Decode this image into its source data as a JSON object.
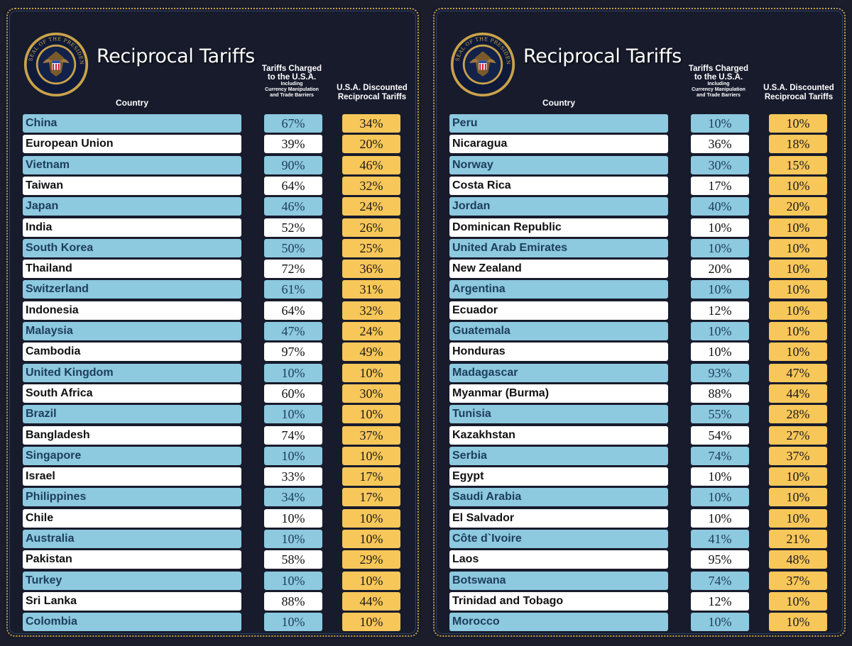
{
  "colors": {
    "background": "#171b2c",
    "row_blue": "#8dc9df",
    "row_white": "#ffffff",
    "discount_cell": "#f8c75a",
    "border_gold": "#c9a24a"
  },
  "panels": [
    {
      "title": "Reciprocal Tariffs",
      "seal_text": "SEAL OF THE PRESIDENT OF THE UNITED STATES",
      "headers": {
        "country": "Country",
        "charged_line1": "Tariffs Charged",
        "charged_line2": "to the U.S.A.",
        "charged_sub1": "Including",
        "charged_sub2": "Currency Manipulation",
        "charged_sub3": "and Trade Barriers",
        "discounted_line1": "U.S.A. Discounted",
        "discounted_line2": "Reciprocal Tariffs"
      },
      "rows": [
        {
          "country": "China",
          "charged": "67%",
          "discounted": "34%"
        },
        {
          "country": "European Union",
          "charged": "39%",
          "discounted": "20%"
        },
        {
          "country": "Vietnam",
          "charged": "90%",
          "discounted": "46%"
        },
        {
          "country": "Taiwan",
          "charged": "64%",
          "discounted": "32%"
        },
        {
          "country": "Japan",
          "charged": "46%",
          "discounted": "24%"
        },
        {
          "country": "India",
          "charged": "52%",
          "discounted": "26%"
        },
        {
          "country": "South Korea",
          "charged": "50%",
          "discounted": "25%"
        },
        {
          "country": "Thailand",
          "charged": "72%",
          "discounted": "36%"
        },
        {
          "country": "Switzerland",
          "charged": "61%",
          "discounted": "31%"
        },
        {
          "country": "Indonesia",
          "charged": "64%",
          "discounted": "32%"
        },
        {
          "country": "Malaysia",
          "charged": "47%",
          "discounted": "24%"
        },
        {
          "country": "Cambodia",
          "charged": "97%",
          "discounted": "49%"
        },
        {
          "country": "United Kingdom",
          "charged": "10%",
          "discounted": "10%"
        },
        {
          "country": "South Africa",
          "charged": "60%",
          "discounted": "30%"
        },
        {
          "country": "Brazil",
          "charged": "10%",
          "discounted": "10%"
        },
        {
          "country": "Bangladesh",
          "charged": "74%",
          "discounted": "37%"
        },
        {
          "country": "Singapore",
          "charged": "10%",
          "discounted": "10%"
        },
        {
          "country": "Israel",
          "charged": "33%",
          "discounted": "17%"
        },
        {
          "country": "Philippines",
          "charged": "34%",
          "discounted": "17%"
        },
        {
          "country": "Chile",
          "charged": "10%",
          "discounted": "10%"
        },
        {
          "country": "Australia",
          "charged": "10%",
          "discounted": "10%"
        },
        {
          "country": "Pakistan",
          "charged": "58%",
          "discounted": "29%"
        },
        {
          "country": "Turkey",
          "charged": "10%",
          "discounted": "10%"
        },
        {
          "country": "Sri Lanka",
          "charged": "88%",
          "discounted": "44%"
        },
        {
          "country": "Colombia",
          "charged": "10%",
          "discounted": "10%"
        }
      ]
    },
    {
      "title": "Reciprocal Tariffs",
      "seal_text": "SEAL OF THE PRESIDENT OF THE UNITED STATES",
      "headers": {
        "country": "Country",
        "charged_line1": "Tariffs Charged",
        "charged_line2": "to the U.S.A.",
        "charged_sub1": "Including",
        "charged_sub2": "Currency Manipulation",
        "charged_sub3": "and Trade Barriers",
        "discounted_line1": "U.S.A. Discounted",
        "discounted_line2": "Reciprocal Tariffs"
      },
      "rows": [
        {
          "country": "Peru",
          "charged": "10%",
          "discounted": "10%"
        },
        {
          "country": "Nicaragua",
          "charged": "36%",
          "discounted": "18%"
        },
        {
          "country": "Norway",
          "charged": "30%",
          "discounted": "15%"
        },
        {
          "country": "Costa Rica",
          "charged": "17%",
          "discounted": "10%"
        },
        {
          "country": "Jordan",
          "charged": "40%",
          "discounted": "20%"
        },
        {
          "country": "Dominican Republic",
          "charged": "10%",
          "discounted": "10%"
        },
        {
          "country": "United Arab Emirates",
          "charged": "10%",
          "discounted": "10%"
        },
        {
          "country": "New Zealand",
          "charged": "20%",
          "discounted": "10%"
        },
        {
          "country": "Argentina",
          "charged": "10%",
          "discounted": "10%"
        },
        {
          "country": "Ecuador",
          "charged": "12%",
          "discounted": "10%"
        },
        {
          "country": "Guatemala",
          "charged": "10%",
          "discounted": "10%"
        },
        {
          "country": "Honduras",
          "charged": "10%",
          "discounted": "10%"
        },
        {
          "country": "Madagascar",
          "charged": "93%",
          "discounted": "47%"
        },
        {
          "country": "Myanmar (Burma)",
          "charged": "88%",
          "discounted": "44%"
        },
        {
          "country": "Tunisia",
          "charged": "55%",
          "discounted": "28%"
        },
        {
          "country": "Kazakhstan",
          "charged": "54%",
          "discounted": "27%"
        },
        {
          "country": "Serbia",
          "charged": "74%",
          "discounted": "37%"
        },
        {
          "country": "Egypt",
          "charged": "10%",
          "discounted": "10%"
        },
        {
          "country": "Saudi Arabia",
          "charged": "10%",
          "discounted": "10%"
        },
        {
          "country": "El Salvador",
          "charged": "10%",
          "discounted": "10%"
        },
        {
          "country": "Côte d`Ivoire",
          "charged": "41%",
          "discounted": "21%"
        },
        {
          "country": "Laos",
          "charged": "95%",
          "discounted": "48%"
        },
        {
          "country": "Botswana",
          "charged": "74%",
          "discounted": "37%"
        },
        {
          "country": "Trinidad and Tobago",
          "charged": "12%",
          "discounted": "10%"
        },
        {
          "country": "Morocco",
          "charged": "10%",
          "discounted": "10%"
        }
      ]
    }
  ]
}
